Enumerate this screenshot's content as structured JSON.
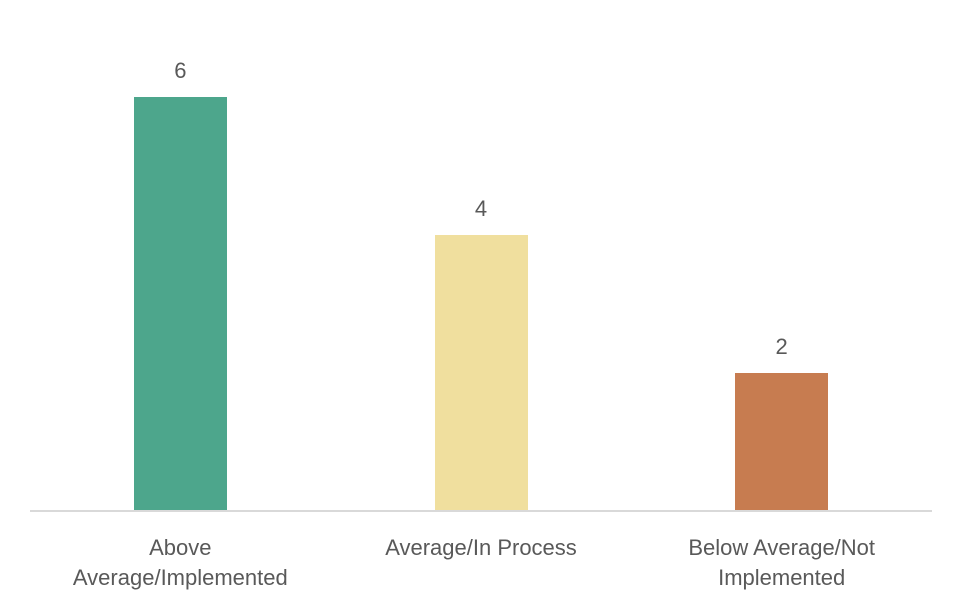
{
  "chart_data": {
    "type": "bar",
    "title": "",
    "categories": [
      "Above Average/Implemented",
      "Average/In Process",
      "Below Average/Not Implemented"
    ],
    "values": [
      6,
      4,
      2
    ],
    "data_labels": [
      "6",
      "4",
      "2"
    ],
    "bar_colors": [
      "#4DA68C",
      "#F0DF9E",
      "#C77C50"
    ],
    "xlabel": "",
    "ylabel": "",
    "ylim": [
      0,
      7.4
    ],
    "grid": false,
    "legend": false,
    "data_labels_visible": true,
    "text_color": "#595959",
    "axis_line_color": "#D9D9D9",
    "background_color": "#FFFFFF"
  }
}
